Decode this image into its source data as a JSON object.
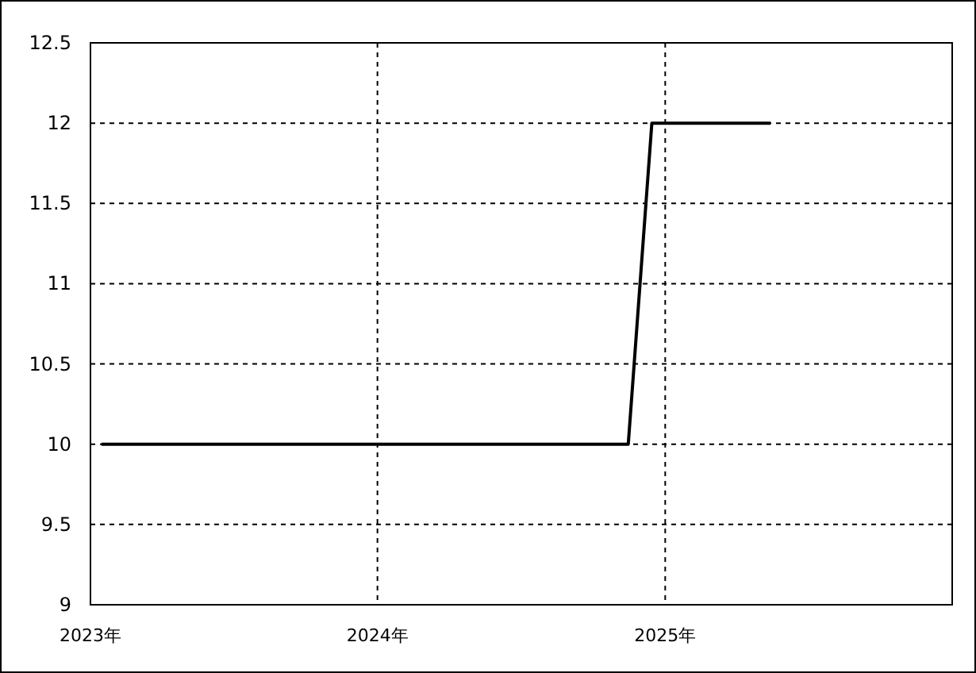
{
  "chart_data": {
    "type": "line",
    "x": [
      "2023-01-15",
      "2024-11-15",
      "2024-12-15",
      "2025-05-15"
    ],
    "series": [
      {
        "color": "#000000",
        "values": [
          10,
          10,
          12,
          12
        ]
      }
    ],
    "xlim": [
      "2023-01-01",
      "2026-01-01"
    ],
    "xticks": [
      {
        "value": "2023-01-01",
        "label": "2023年"
      },
      {
        "value": "2024-01-01",
        "label": "2024年"
      },
      {
        "value": "2025-01-01",
        "label": "2025年"
      }
    ],
    "ylim": [
      9,
      12.5
    ],
    "yticks": [
      9,
      9.5,
      10,
      10.5,
      11,
      11.5,
      12,
      12.5
    ],
    "grid": true
  }
}
